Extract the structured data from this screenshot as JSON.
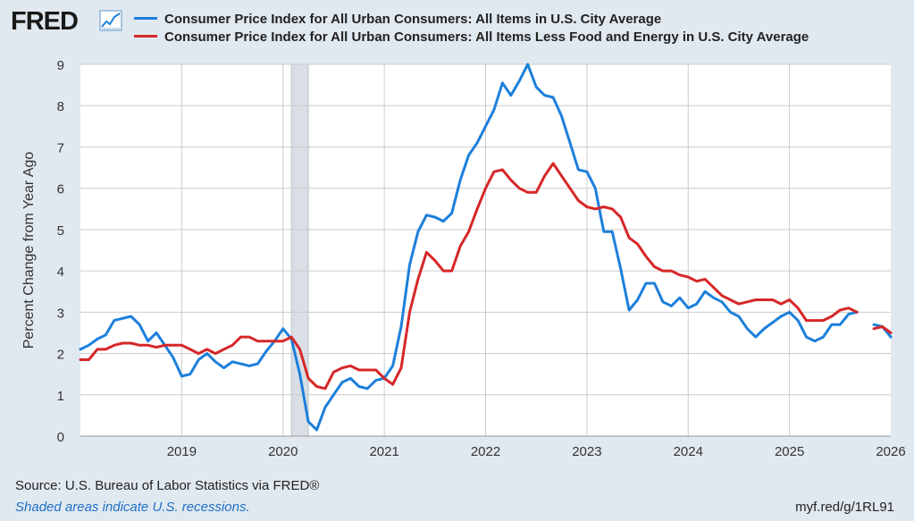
{
  "header": {
    "logo_text": "FRED",
    "logo_icon": "chart-line-icon"
  },
  "footer": {
    "source": "Source: U.S. Bureau of Labor Statistics via FRED®",
    "note": "Shaded areas indicate U.S. recessions.",
    "shortlink": "myf.red/g/1RL91"
  },
  "colors": {
    "background": "#e1e9f0",
    "plot_background": "#ffffff",
    "grid": "#cccccc",
    "recession": "#d9dfe5",
    "series_0": "#1c7fdb",
    "series_1": "#d62728"
  },
  "chart_data": {
    "type": "line",
    "title": "",
    "xlabel": "",
    "ylabel": "Percent Change from Year Ago",
    "xlim": [
      "2018-01",
      "2026-01"
    ],
    "ylim": [
      0,
      9
    ],
    "yticks": [
      0,
      1,
      2,
      3,
      4,
      5,
      6,
      7,
      8,
      9
    ],
    "xticks": [
      "2019",
      "2020",
      "2021",
      "2022",
      "2023",
      "2024",
      "2025",
      "2026"
    ],
    "grid": true,
    "legend_position": "top",
    "recessions": [
      [
        "2020-02",
        "2020-04"
      ]
    ],
    "series": [
      {
        "name": "Consumer Price Index for All Urban Consumers: All Items in U.S. City Average",
        "color": "#1c7fdb",
        "points": [
          [
            "2018-01",
            2.1
          ],
          [
            "2018-02",
            2.2
          ],
          [
            "2018-03",
            2.35
          ],
          [
            "2018-04",
            2.45
          ],
          [
            "2018-05",
            2.8
          ],
          [
            "2018-06",
            2.85
          ],
          [
            "2018-07",
            2.9
          ],
          [
            "2018-08",
            2.7
          ],
          [
            "2018-09",
            2.3
          ],
          [
            "2018-10",
            2.5
          ],
          [
            "2018-11",
            2.2
          ],
          [
            "2018-12",
            1.9
          ],
          [
            "2019-01",
            1.45
          ],
          [
            "2019-02",
            1.5
          ],
          [
            "2019-03",
            1.85
          ],
          [
            "2019-04",
            2.0
          ],
          [
            "2019-05",
            1.8
          ],
          [
            "2019-06",
            1.65
          ],
          [
            "2019-07",
            1.8
          ],
          [
            "2019-08",
            1.75
          ],
          [
            "2019-09",
            1.7
          ],
          [
            "2019-10",
            1.75
          ],
          [
            "2019-11",
            2.05
          ],
          [
            "2019-12",
            2.3
          ],
          [
            "2020-01",
            2.6
          ],
          [
            "2020-02",
            2.35
          ],
          [
            "2020-03",
            1.5
          ],
          [
            "2020-04",
            0.35
          ],
          [
            "2020-05",
            0.15
          ],
          [
            "2020-06",
            0.7
          ],
          [
            "2020-07",
            1.0
          ],
          [
            "2020-08",
            1.3
          ],
          [
            "2020-09",
            1.4
          ],
          [
            "2020-10",
            1.2
          ],
          [
            "2020-11",
            1.15
          ],
          [
            "2020-12",
            1.35
          ],
          [
            "2021-01",
            1.4
          ],
          [
            "2021-02",
            1.7
          ],
          [
            "2021-03",
            2.65
          ],
          [
            "2021-04",
            4.15
          ],
          [
            "2021-05",
            4.95
          ],
          [
            "2021-06",
            5.35
          ],
          [
            "2021-07",
            5.3
          ],
          [
            "2021-08",
            5.2
          ],
          [
            "2021-09",
            5.4
          ],
          [
            "2021-10",
            6.2
          ],
          [
            "2021-11",
            6.8
          ],
          [
            "2021-12",
            7.1
          ],
          [
            "2022-01",
            7.5
          ],
          [
            "2022-02",
            7.9
          ],
          [
            "2022-03",
            8.55
          ],
          [
            "2022-04",
            8.25
          ],
          [
            "2022-05",
            8.6
          ],
          [
            "2022-06",
            9.0
          ],
          [
            "2022-07",
            8.45
          ],
          [
            "2022-08",
            8.25
          ],
          [
            "2022-09",
            8.2
          ],
          [
            "2022-10",
            7.75
          ],
          [
            "2022-11",
            7.1
          ],
          [
            "2022-12",
            6.45
          ],
          [
            "2023-01",
            6.4
          ],
          [
            "2023-02",
            6.0
          ],
          [
            "2023-03",
            4.95
          ],
          [
            "2023-04",
            4.95
          ],
          [
            "2023-05",
            4.05
          ],
          [
            "2023-06",
            3.05
          ],
          [
            "2023-07",
            3.3
          ],
          [
            "2023-08",
            3.7
          ],
          [
            "2023-09",
            3.7
          ],
          [
            "2023-10",
            3.25
          ],
          [
            "2023-11",
            3.15
          ],
          [
            "2023-12",
            3.35
          ],
          [
            "2024-01",
            3.1
          ],
          [
            "2024-02",
            3.2
          ],
          [
            "2024-03",
            3.5
          ],
          [
            "2024-04",
            3.35
          ],
          [
            "2024-05",
            3.25
          ],
          [
            "2024-06",
            3.0
          ],
          [
            "2024-07",
            2.9
          ],
          [
            "2024-08",
            2.6
          ],
          [
            "2024-09",
            2.4
          ],
          [
            "2024-10",
            2.6
          ],
          [
            "2024-11",
            2.75
          ],
          [
            "2024-12",
            2.9
          ],
          [
            "2025-01",
            3.0
          ],
          [
            "2025-02",
            2.8
          ],
          [
            "2025-03",
            2.4
          ],
          [
            "2025-04",
            2.3
          ],
          [
            "2025-05",
            2.4
          ],
          [
            "2025-06",
            2.7
          ],
          [
            "2025-07",
            2.7
          ],
          [
            "2025-08",
            2.95
          ],
          [
            "2025-09",
            3.0
          ],
          null,
          [
            "2025-11",
            2.7
          ],
          [
            "2025-12",
            2.65
          ],
          [
            "2026-01",
            2.4
          ]
        ]
      },
      {
        "name": "Consumer Price Index for All Urban Consumers: All Items Less Food and Energy in U.S. City Average",
        "color": "#d62728",
        "points": [
          [
            "2018-01",
            1.85
          ],
          [
            "2018-02",
            1.85
          ],
          [
            "2018-03",
            2.1
          ],
          [
            "2018-04",
            2.1
          ],
          [
            "2018-05",
            2.2
          ],
          [
            "2018-06",
            2.25
          ],
          [
            "2018-07",
            2.25
          ],
          [
            "2018-08",
            2.2
          ],
          [
            "2018-09",
            2.2
          ],
          [
            "2018-10",
            2.15
          ],
          [
            "2018-11",
            2.2
          ],
          [
            "2018-12",
            2.2
          ],
          [
            "2019-01",
            2.2
          ],
          [
            "2019-02",
            2.1
          ],
          [
            "2019-03",
            2.0
          ],
          [
            "2019-04",
            2.1
          ],
          [
            "2019-05",
            2.0
          ],
          [
            "2019-06",
            2.1
          ],
          [
            "2019-07",
            2.2
          ],
          [
            "2019-08",
            2.4
          ],
          [
            "2019-09",
            2.4
          ],
          [
            "2019-10",
            2.3
          ],
          [
            "2019-11",
            2.3
          ],
          [
            "2019-12",
            2.3
          ],
          [
            "2020-01",
            2.3
          ],
          [
            "2020-02",
            2.4
          ],
          [
            "2020-03",
            2.1
          ],
          [
            "2020-04",
            1.4
          ],
          [
            "2020-05",
            1.2
          ],
          [
            "2020-06",
            1.15
          ],
          [
            "2020-07",
            1.55
          ],
          [
            "2020-08",
            1.65
          ],
          [
            "2020-09",
            1.7
          ],
          [
            "2020-10",
            1.6
          ],
          [
            "2020-11",
            1.6
          ],
          [
            "2020-12",
            1.6
          ],
          [
            "2021-01",
            1.4
          ],
          [
            "2021-02",
            1.25
          ],
          [
            "2021-03",
            1.65
          ],
          [
            "2021-04",
            3.0
          ],
          [
            "2021-05",
            3.8
          ],
          [
            "2021-06",
            4.45
          ],
          [
            "2021-07",
            4.25
          ],
          [
            "2021-08",
            4.0
          ],
          [
            "2021-09",
            4.0
          ],
          [
            "2021-10",
            4.6
          ],
          [
            "2021-11",
            4.95
          ],
          [
            "2021-12",
            5.5
          ],
          [
            "2022-01",
            6.0
          ],
          [
            "2022-02",
            6.4
          ],
          [
            "2022-03",
            6.45
          ],
          [
            "2022-04",
            6.2
          ],
          [
            "2022-05",
            6.0
          ],
          [
            "2022-06",
            5.9
          ],
          [
            "2022-07",
            5.9
          ],
          [
            "2022-08",
            6.3
          ],
          [
            "2022-09",
            6.6
          ],
          [
            "2022-10",
            6.3
          ],
          [
            "2022-11",
            6.0
          ],
          [
            "2022-12",
            5.7
          ],
          [
            "2023-01",
            5.55
          ],
          [
            "2023-02",
            5.5
          ],
          [
            "2023-03",
            5.55
          ],
          [
            "2023-04",
            5.5
          ],
          [
            "2023-05",
            5.3
          ],
          [
            "2023-06",
            4.8
          ],
          [
            "2023-07",
            4.65
          ],
          [
            "2023-08",
            4.35
          ],
          [
            "2023-09",
            4.1
          ],
          [
            "2023-10",
            4.0
          ],
          [
            "2023-11",
            4.0
          ],
          [
            "2023-12",
            3.9
          ],
          [
            "2024-01",
            3.85
          ],
          [
            "2024-02",
            3.75
          ],
          [
            "2024-03",
            3.8
          ],
          [
            "2024-04",
            3.6
          ],
          [
            "2024-05",
            3.4
          ],
          [
            "2024-06",
            3.3
          ],
          [
            "2024-07",
            3.2
          ],
          [
            "2024-08",
            3.25
          ],
          [
            "2024-09",
            3.3
          ],
          [
            "2024-10",
            3.3
          ],
          [
            "2024-11",
            3.3
          ],
          [
            "2024-12",
            3.2
          ],
          [
            "2025-01",
            3.3
          ],
          [
            "2025-02",
            3.1
          ],
          [
            "2025-03",
            2.8
          ],
          [
            "2025-04",
            2.8
          ],
          [
            "2025-05",
            2.8
          ],
          [
            "2025-06",
            2.9
          ],
          [
            "2025-07",
            3.05
          ],
          [
            "2025-08",
            3.1
          ],
          [
            "2025-09",
            3.0
          ],
          null,
          [
            "2025-11",
            2.6
          ],
          [
            "2025-12",
            2.65
          ],
          [
            "2026-01",
            2.5
          ]
        ]
      }
    ]
  }
}
